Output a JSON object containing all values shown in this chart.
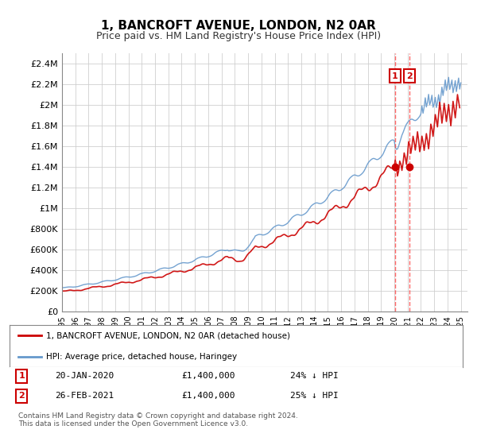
{
  "title": "1, BANCROFT AVENUE, LONDON, N2 0AR",
  "subtitle": "Price paid vs. HM Land Registry's House Price Index (HPI)",
  "ylabel": "",
  "ylim": [
    0,
    2500000
  ],
  "yticks": [
    0,
    200000,
    400000,
    600000,
    800000,
    1000000,
    1200000,
    1400000,
    1600000,
    1800000,
    2000000,
    2200000,
    2400000
  ],
  "ytick_labels": [
    "£0",
    "£200K",
    "£400K",
    "£600K",
    "£800K",
    "£1M",
    "£1.2M",
    "£1.4M",
    "£1.6M",
    "£1.8M",
    "£2M",
    "£2.2M",
    "£2.4M"
  ],
  "sale1_date": 2020.055,
  "sale1_price": 1400000,
  "sale1_label": "1",
  "sale2_date": 2021.147,
  "sale2_price": 1400000,
  "sale2_label": "2",
  "red_line_color": "#cc0000",
  "blue_line_color": "#6699cc",
  "dashed_line_color": "#ff4444",
  "marker_color": "#cc0000",
  "legend_box_color": "#cc0000",
  "legend1_text": "1, BANCROFT AVENUE, LONDON, N2 0AR (detached house)",
  "legend2_text": "HPI: Average price, detached house, Haringey",
  "annotation1": "1    20-JAN-2020    £1,400,000    24% ↓ HPI",
  "annotation2": "2    26-FEB-2021    £1,400,000    25% ↓ HPI",
  "footer": "Contains HM Land Registry data © Crown copyright and database right 2024.\nThis data is licensed under the Open Government Licence v3.0.",
  "background_color": "#ffffff",
  "grid_color": "#cccccc"
}
